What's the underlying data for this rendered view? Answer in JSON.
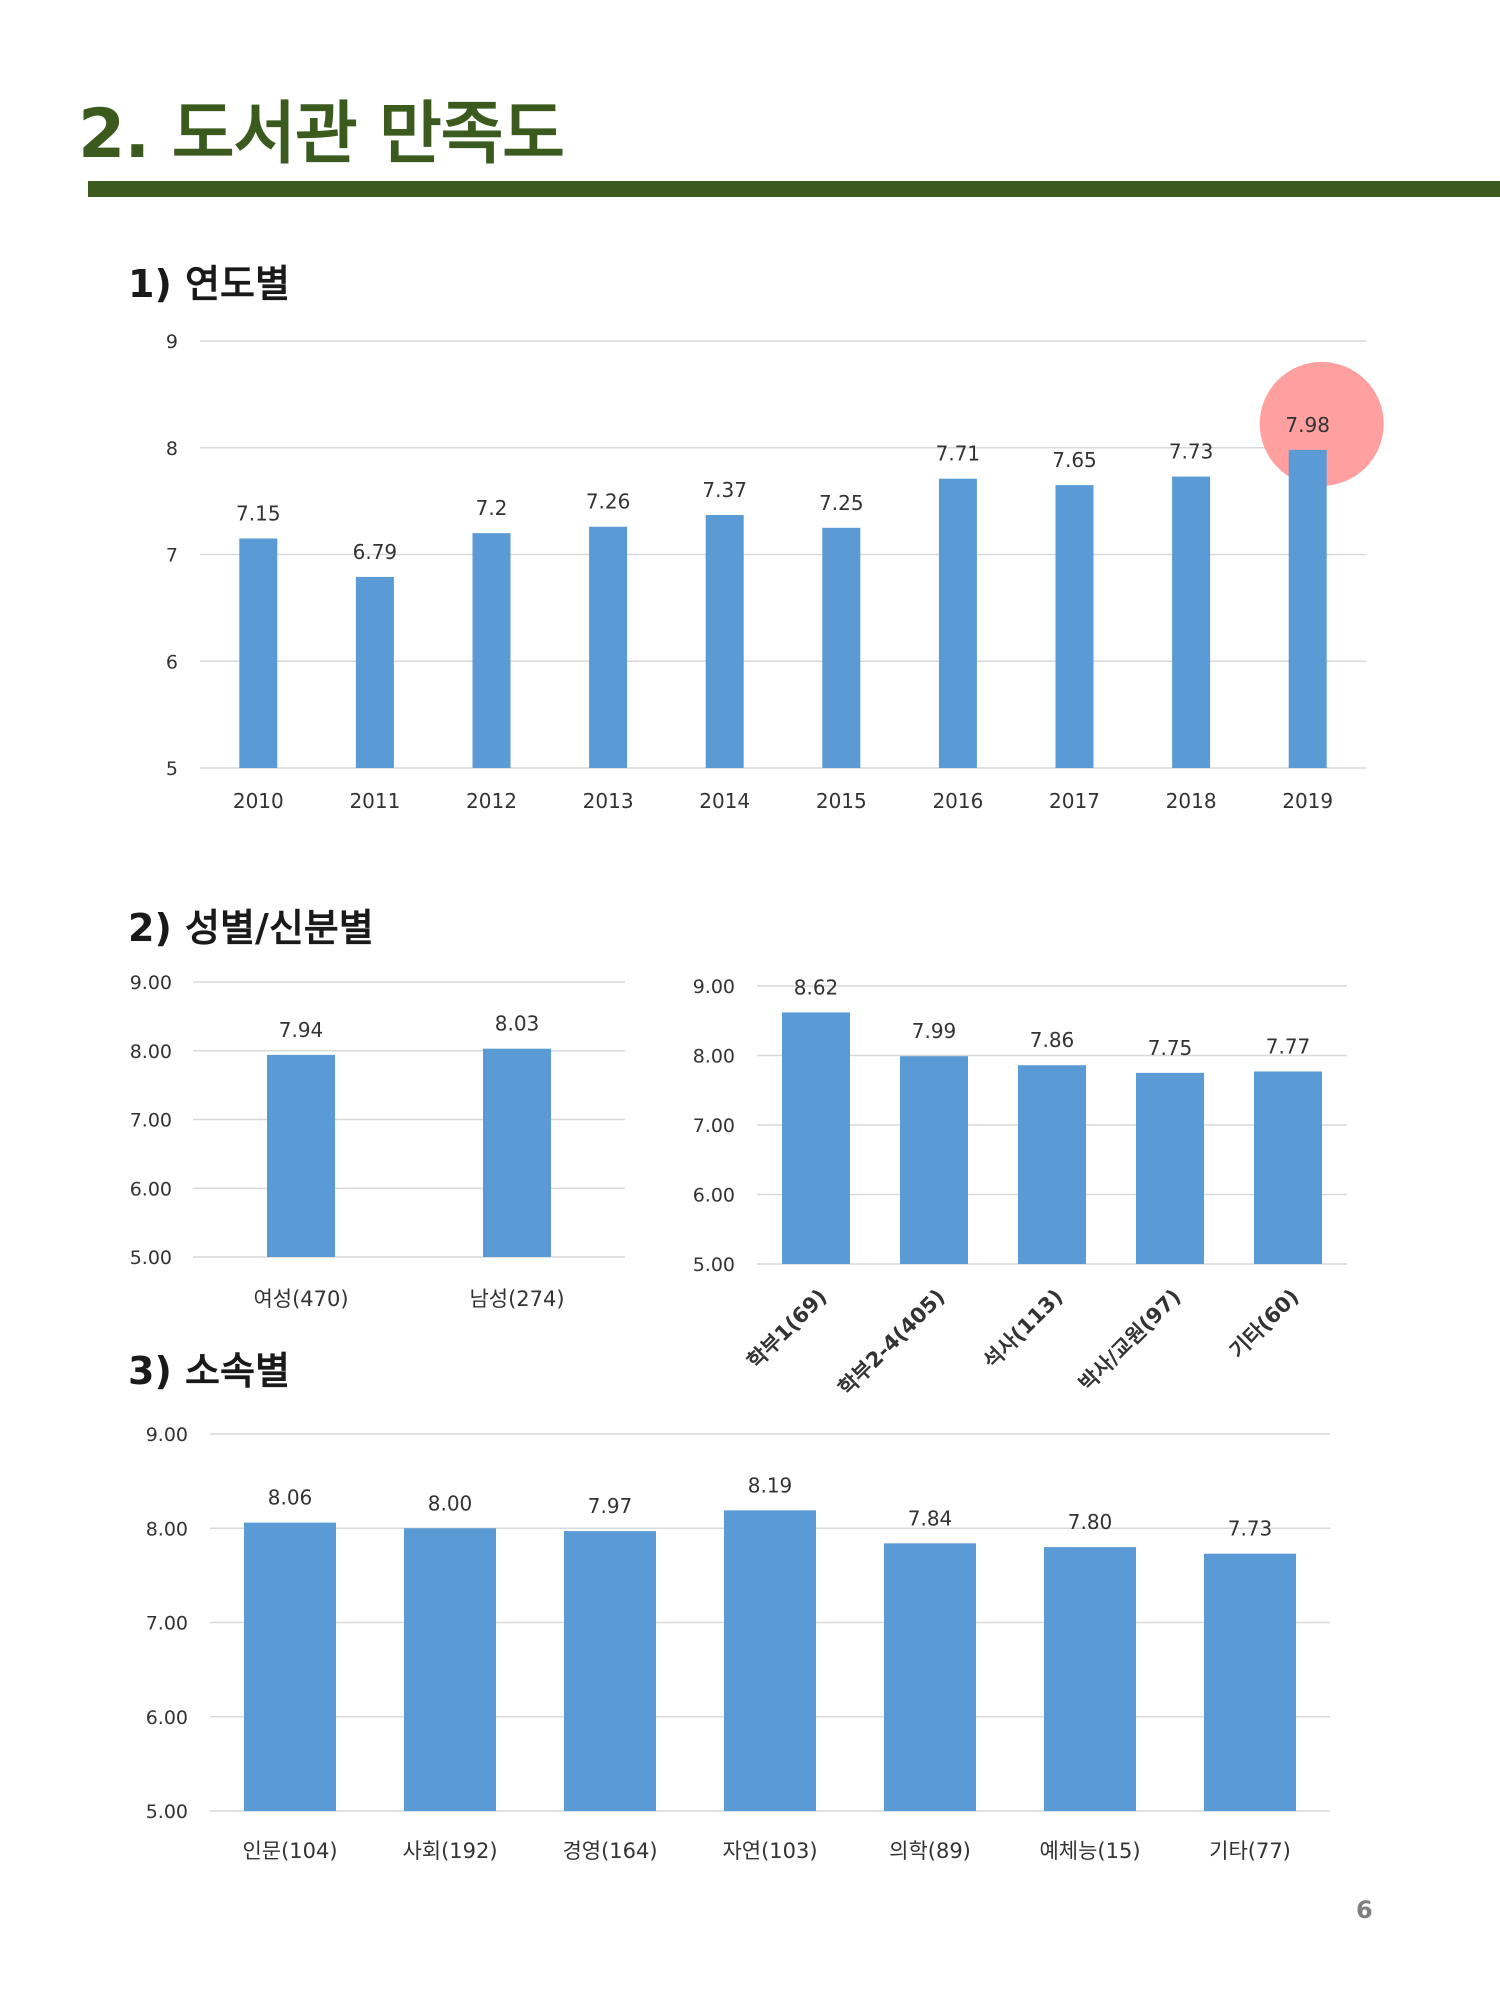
{
  "page": {
    "title": "2. 도서관 만족도",
    "page_number": "6"
  },
  "sections": {
    "by_year": "1) 연도별",
    "by_gender_status": "2) 성별/신분별",
    "by_affiliation": "3) 소속별"
  },
  "colors": {
    "bar": "#5b9bd5",
    "title": "#3b5a1e",
    "highlight": "#ff9a9a",
    "grid": "#d9d9d9"
  },
  "chart_data": [
    {
      "id": "year",
      "type": "bar",
      "categories": [
        "2010",
        "2011",
        "2012",
        "2013",
        "2014",
        "2015",
        "2016",
        "2017",
        "2018",
        "2019"
      ],
      "values": [
        7.15,
        6.79,
        7.2,
        7.26,
        7.37,
        7.25,
        7.71,
        7.65,
        7.73,
        7.98
      ],
      "value_labels": [
        "7.15",
        "6.79",
        "7.2",
        "7.26",
        "7.37",
        "7.25",
        "7.71",
        "7.65",
        "7.73",
        "7.98"
      ],
      "ylim": [
        5,
        9
      ],
      "yticks": [
        "5",
        "6",
        "7",
        "8",
        "9"
      ],
      "grid": true,
      "highlight_category": "2019"
    },
    {
      "id": "gender",
      "type": "bar",
      "categories": [
        "여성(470)",
        "남성(274)"
      ],
      "values": [
        7.94,
        8.03
      ],
      "value_labels": [
        "7.94",
        "8.03"
      ],
      "ylim": [
        5,
        9
      ],
      "yticks": [
        "5.00",
        "6.00",
        "7.00",
        "8.00",
        "9.00"
      ],
      "grid": true
    },
    {
      "id": "status",
      "type": "bar",
      "categories": [
        "학부1(69)",
        "학부2-4(405)",
        "석사(113)",
        "박사/교원(97)",
        "기타(60)"
      ],
      "values": [
        8.62,
        7.99,
        7.86,
        7.75,
        7.77
      ],
      "value_labels": [
        "8.62",
        "7.99",
        "7.86",
        "7.75",
        "7.77"
      ],
      "ylim": [
        5,
        9
      ],
      "yticks": [
        "5.00",
        "6.00",
        "7.00",
        "8.00",
        "9.00"
      ],
      "grid": true,
      "x_label_rotation": "rotated"
    },
    {
      "id": "affiliation",
      "type": "bar",
      "categories": [
        "인문(104)",
        "사회(192)",
        "경영(164)",
        "자연(103)",
        "의학(89)",
        "예체능(15)",
        "기타(77)"
      ],
      "values": [
        8.06,
        8.0,
        7.97,
        8.19,
        7.84,
        7.8,
        7.73
      ],
      "value_labels": [
        "8.06",
        "8.00",
        "7.97",
        "8.19",
        "7.84",
        "7.80",
        "7.73"
      ],
      "ylim": [
        5,
        9
      ],
      "yticks": [
        "5.00",
        "6.00",
        "7.00",
        "8.00",
        "9.00"
      ],
      "grid": true
    }
  ]
}
